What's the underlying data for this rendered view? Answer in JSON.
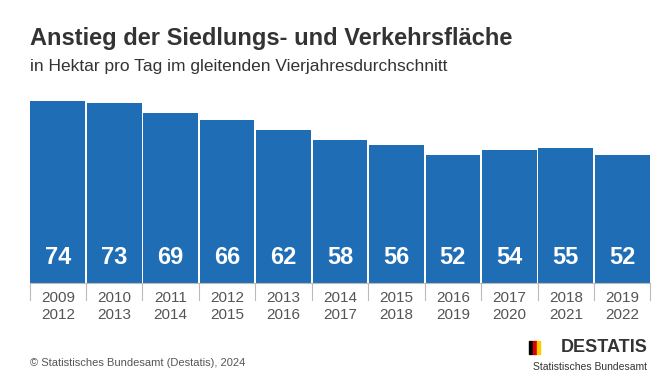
{
  "chart_data": {
    "type": "bar",
    "title": "Anstieg der Siedlungs- und Verkehrsfläche",
    "subtitle": "in Hektar pro Tag im gleitenden Vierjahresdurchschnitt",
    "categories": [
      "2009\n2012",
      "2010\n2013",
      "2011\n2014",
      "2012\n2015",
      "2013\n2016",
      "2014\n2017",
      "2015\n2018",
      "2016\n2019",
      "2017\n2020",
      "2018\n2021",
      "2019\n2022"
    ],
    "values": [
      74,
      73,
      69,
      66,
      62,
      58,
      56,
      52,
      54,
      55,
      52
    ],
    "color": "#1f6db5",
    "ylim": [
      0,
      74
    ],
    "yticks": [],
    "tick_labels": "x",
    "data_labels": true,
    "source": "© Statistisches Bundesamt (Destatis), 2024",
    "logo": "DESTATIS",
    "logo_subtitle": "Statistisches Bundesamt"
  }
}
